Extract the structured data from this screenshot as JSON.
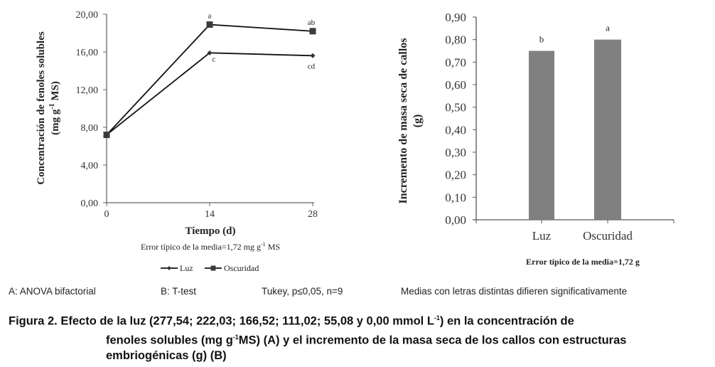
{
  "chart_data": [
    {
      "id": "A",
      "type": "line",
      "title": "",
      "xlabel": "Tiempo (d)",
      "ylabel": "Concentración de fenoles solubles (mg g-1 MS)",
      "ylabel_line1": "Concentración  de fenoles solubles",
      "ylabel_line2": "(mg g",
      "ylabel_sup": "-1",
      "ylabel_line2_end": " MS)",
      "x": [
        0,
        14,
        28
      ],
      "x_tick_labels": [
        "0",
        "14",
        "28"
      ],
      "ylim": [
        0,
        20
      ],
      "y_ticks": [
        0,
        4,
        8,
        12,
        16,
        20
      ],
      "y_tick_labels": [
        "0,00",
        "4,00",
        "8,00",
        "12,00",
        "16,00",
        "20,00"
      ],
      "grid": false,
      "series": [
        {
          "name": "Luz",
          "marker": "diamond",
          "values": [
            7.2,
            15.9,
            15.6
          ],
          "letters": [
            "",
            "c",
            "cd"
          ]
        },
        {
          "name": "Oscuridad",
          "marker": "square",
          "values": [
            7.2,
            18.9,
            18.2
          ],
          "letters": [
            "",
            "a",
            "ab"
          ]
        }
      ],
      "legend": {
        "placement": "bottom",
        "entries": [
          "Luz",
          "Oscuridad"
        ]
      },
      "annotation": {
        "text": "Error típico de la media=1,72  mg g",
        "sup": "-1",
        "end": " MS"
      }
    },
    {
      "id": "B",
      "type": "bar",
      "title": "",
      "xlabel": "",
      "ylabel": "Incremento de masa seca de callos (g)",
      "ylabel_line1": "Incremento  de masa seca de callos",
      "ylabel_line2": "(g)",
      "categories": [
        "Luz",
        "Oscuridad"
      ],
      "values": [
        0.75,
        0.8
      ],
      "letters": [
        "b",
        "a"
      ],
      "ylim": [
        0,
        0.9
      ],
      "y_ticks": [
        0,
        0.1,
        0.2,
        0.3,
        0.4,
        0.5,
        0.6,
        0.7,
        0.8,
        0.9
      ],
      "y_tick_labels": [
        "0,00",
        "0,10",
        "0,20",
        "0,30",
        "0,40",
        "0,50",
        "0,60",
        "0,70",
        "0,80",
        "0,90"
      ],
      "grid": false,
      "bar_color": "#808080",
      "annotation": "Error típico  de la media=1,72   g"
    }
  ],
  "notes": {
    "a": "A: ANOVA bifactorial",
    "b": "B: T-test",
    "tukey": "Tukey, p≤0,05, n=9",
    "medias": "Medias con letras distintas difieren significativamente"
  },
  "caption": {
    "p1": "Figura 2. Efecto de la luz (277,54; 222,03; 166,52; 111,02; 55,08 y 0,00 mmol L",
    "p1_sup": "-1",
    "p1_end": ") en la concentración de",
    "p2": "fenoles solubles (mg g",
    "p2_sup": "-1",
    "p2_end": "MS) (A) y el incremento de la masa seca de los callos con estructuras",
    "p3": "embriogénicas (g) (B)"
  }
}
